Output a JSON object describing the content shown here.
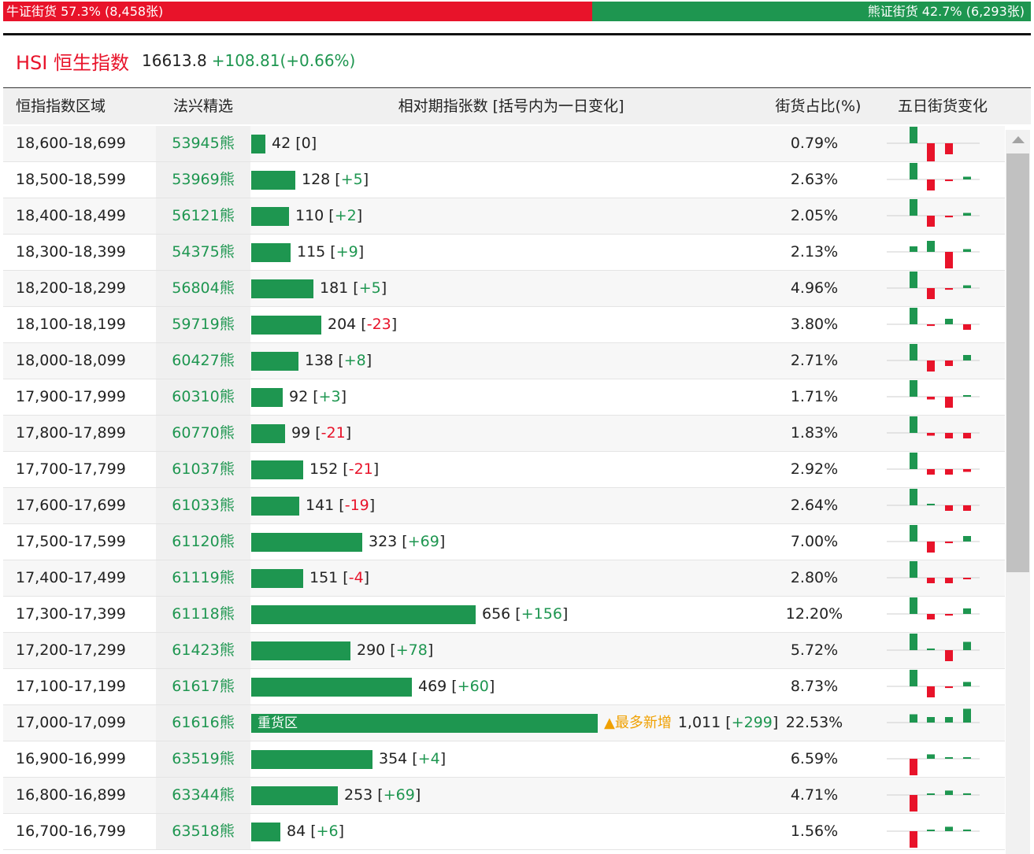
{
  "topbar": {
    "bull_label": "牛证街货 57.3% (8,458张)",
    "bull_share": 0.573,
    "bear_label": "熊证街货 42.7% (6,293张)"
  },
  "index": {
    "name": "HSI 恒生指数",
    "value": "16613.8",
    "change": "+108.81(+0.66%)"
  },
  "columns": {
    "range": "恒指指数区域",
    "pick": "法兴精选",
    "count": "相对期指张数 [括号内为一日变化]",
    "share": "街货占比(%)",
    "five_day": "五日街货变化"
  },
  "heavy_tag": "重货区",
  "new_tag": "▲最多新增",
  "colors": {
    "green": "#1e9650",
    "red": "#e8132a",
    "orange": "#f0a000"
  },
  "rows": [
    {
      "range": "18,600-18,699",
      "code": "53945熊",
      "count": 42,
      "count_text": "42",
      "change": "0",
      "share": "0.79%",
      "spark": [
        3,
        -4,
        -2
      ]
    },
    {
      "range": "18,500-18,599",
      "code": "53969熊",
      "count": 128,
      "count_text": "128",
      "change": "+5",
      "share": "2.63%",
      "spark": [
        3,
        -2,
        -0.3,
        0.5
      ]
    },
    {
      "range": "18,400-18,499",
      "code": "56121熊",
      "count": 110,
      "count_text": "110",
      "change": "+2",
      "share": "2.05%",
      "spark": [
        3,
        -2,
        -0.3,
        0.5
      ]
    },
    {
      "range": "18,300-18,399",
      "code": "54375熊",
      "count": 115,
      "count_text": "115",
      "change": "+9",
      "share": "2.13%",
      "spark": [
        1,
        2,
        -3,
        0.5
      ]
    },
    {
      "range": "18,200-18,299",
      "code": "56804熊",
      "count": 181,
      "count_text": "181",
      "change": "+5",
      "share": "4.96%",
      "spark": [
        3,
        -2,
        -0.3,
        0.5
      ]
    },
    {
      "range": "18,100-18,199",
      "code": "59719熊",
      "count": 204,
      "count_text": "204",
      "change": "-23",
      "share": "3.80%",
      "spark": [
        3,
        -0.3,
        1,
        -1
      ]
    },
    {
      "range": "18,000-18,099",
      "code": "60427熊",
      "count": 138,
      "count_text": "138",
      "change": "+8",
      "share": "2.71%",
      "spark": [
        3,
        -2,
        -1,
        1
      ]
    },
    {
      "range": "17,900-17,999",
      "code": "60310熊",
      "count": 92,
      "count_text": "92",
      "change": "+3",
      "share": "1.71%",
      "spark": [
        3,
        -0.5,
        -2,
        0.2
      ]
    },
    {
      "range": "17,800-17,899",
      "code": "60770熊",
      "count": 99,
      "count_text": "99",
      "change": "-21",
      "share": "1.83%",
      "spark": [
        3,
        -0.5,
        -1,
        -1
      ]
    },
    {
      "range": "17,700-17,799",
      "code": "61037熊",
      "count": 152,
      "count_text": "152",
      "change": "-21",
      "share": "2.92%",
      "spark": [
        3,
        -1,
        -1,
        -0.5
      ]
    },
    {
      "range": "17,600-17,699",
      "code": "61033熊",
      "count": 141,
      "count_text": "141",
      "change": "-19",
      "share": "2.64%",
      "spark": [
        3,
        0.2,
        -1,
        -1
      ]
    },
    {
      "range": "17,500-17,599",
      "code": "61120熊",
      "count": 323,
      "count_text": "323",
      "change": "+69",
      "share": "7.00%",
      "spark": [
        3,
        -2,
        -0.3,
        1
      ]
    },
    {
      "range": "17,400-17,499",
      "code": "61119熊",
      "count": 151,
      "count_text": "151",
      "change": "-4",
      "share": "2.80%",
      "spark": [
        3,
        -1,
        -1,
        -0.2
      ]
    },
    {
      "range": "17,300-17,399",
      "code": "61118熊",
      "count": 656,
      "count_text": "656",
      "change": "+156",
      "share": "12.20%",
      "spark": [
        3,
        -1,
        -0.3,
        1
      ]
    },
    {
      "range": "17,200-17,299",
      "code": "61423熊",
      "count": 290,
      "count_text": "290",
      "change": "+78",
      "share": "5.72%",
      "spark": [
        3,
        0.3,
        -2,
        1.5
      ]
    },
    {
      "range": "17,100-17,199",
      "code": "61617熊",
      "count": 469,
      "count_text": "469",
      "change": "+60",
      "share": "8.73%",
      "spark": [
        3,
        -2,
        -0.3,
        0.8
      ]
    },
    {
      "range": "17,000-17,099",
      "code": "61616熊",
      "count": 1011,
      "count_text": "1,011",
      "change": "+299",
      "share": "22.53%",
      "heavy": true,
      "spark": [
        1.5,
        1,
        1,
        2.5
      ]
    },
    {
      "range": "16,900-16,999",
      "code": "63519熊",
      "count": 354,
      "count_text": "354",
      "change": "+4",
      "share": "6.59%",
      "spark": [
        -3,
        0.8,
        0.2,
        0.2
      ]
    },
    {
      "range": "16,800-16,899",
      "code": "63344熊",
      "count": 253,
      "count_text": "253",
      "change": "+69",
      "share": "4.71%",
      "spark": [
        -3,
        0,
        0.8,
        0.3
      ]
    },
    {
      "range": "16,700-16,799",
      "code": "63518熊",
      "count": 84,
      "count_text": "84",
      "change": "+6",
      "share": "1.56%",
      "spark": [
        -3,
        0,
        0.8,
        0.3
      ]
    }
  ]
}
